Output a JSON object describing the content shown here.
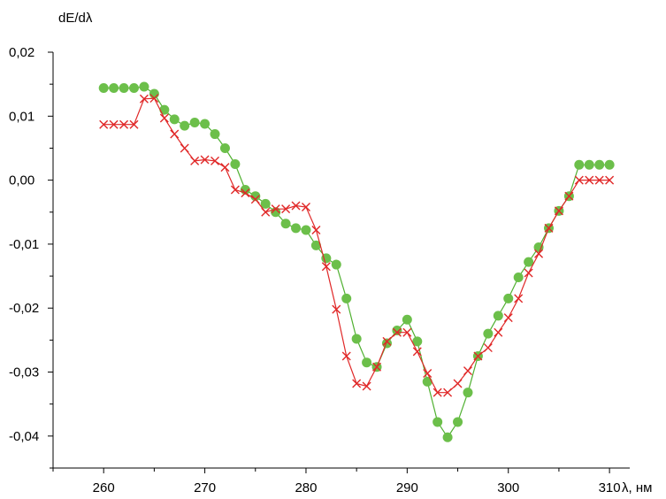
{
  "chart_data": {
    "type": "scatter",
    "title": "",
    "xlabel": "λ, нм",
    "ylabel": "dE/dλ",
    "xlim": [
      255,
      312
    ],
    "ylim": [
      -0.045,
      0.02
    ],
    "xticks": [
      260,
      270,
      280,
      290,
      300,
      310
    ],
    "xtick_labels": [
      "260",
      "270",
      "280",
      "290",
      "300",
      "310"
    ],
    "yticks": [
      0.02,
      0.01,
      0.0,
      -0.01,
      -0.02,
      -0.03,
      -0.04
    ],
    "ytick_labels": [
      "0,02",
      "0,01",
      "0,00",
      "-0,01",
      "-0,02",
      "-0,03",
      "-0,04"
    ],
    "grid": false,
    "legend": "none",
    "series": [
      {
        "marker": "circle",
        "color": "#6cbf4a",
        "line_color": "#4fb030",
        "x": [
          260,
          261,
          262,
          263,
          264,
          265,
          266,
          267,
          268,
          269,
          270,
          271,
          272,
          273,
          274,
          275,
          276,
          277,
          278,
          279,
          280,
          281,
          282,
          283,
          284,
          285,
          286,
          287,
          288,
          289,
          290,
          291,
          292,
          293,
          294,
          295,
          296,
          297,
          298,
          299,
          300,
          301,
          302,
          303,
          304,
          305,
          306,
          307,
          308,
          309,
          310
        ],
        "values": [
          0.0144,
          0.0144,
          0.0144,
          0.0144,
          0.0146,
          0.0135,
          0.011,
          0.0095,
          0.0085,
          0.009,
          0.0088,
          0.0072,
          0.005,
          0.0025,
          -0.0015,
          -0.0025,
          -0.0037,
          -0.005,
          -0.0068,
          -0.0075,
          -0.0078,
          -0.0102,
          -0.0122,
          -0.0132,
          -0.0185,
          -0.0248,
          -0.0285,
          -0.0292,
          -0.0255,
          -0.0235,
          -0.0218,
          -0.0252,
          -0.0315,
          -0.0378,
          -0.0402,
          -0.0378,
          -0.0332,
          -0.0275,
          -0.024,
          -0.0212,
          -0.0185,
          -0.0152,
          -0.0128,
          -0.0105,
          -0.0075,
          -0.0048,
          -0.0025,
          0.0024,
          0.0024,
          0.0024,
          0.0024
        ]
      },
      {
        "marker": "x",
        "color": "#e02828",
        "line_color": "#e02828",
        "x": [
          260,
          261,
          262,
          263,
          264,
          265,
          266,
          267,
          268,
          269,
          270,
          271,
          272,
          273,
          274,
          275,
          276,
          277,
          278,
          279,
          280,
          281,
          282,
          283,
          284,
          285,
          286,
          287,
          288,
          289,
          290,
          291,
          292,
          293,
          294,
          295,
          296,
          297,
          298,
          299,
          300,
          301,
          302,
          303,
          304,
          305,
          306,
          307,
          308,
          309,
          310
        ],
        "values": [
          0.0087,
          0.0087,
          0.0087,
          0.0087,
          0.0127,
          0.0128,
          0.0097,
          0.0072,
          0.005,
          0.003,
          0.0032,
          0.003,
          0.002,
          -0.0015,
          -0.002,
          -0.003,
          -0.005,
          -0.0045,
          -0.0045,
          -0.004,
          -0.0042,
          -0.0078,
          -0.0135,
          -0.0202,
          -0.0275,
          -0.0318,
          -0.0322,
          -0.0292,
          -0.0252,
          -0.0238,
          -0.0238,
          -0.0268,
          -0.0302,
          -0.0332,
          -0.0332,
          -0.0318,
          -0.0298,
          -0.0275,
          -0.0262,
          -0.0238,
          -0.0215,
          -0.0185,
          -0.0145,
          -0.0115,
          -0.0075,
          -0.0048,
          -0.0025,
          0.0,
          0.0,
          0.0,
          0.0
        ]
      }
    ]
  }
}
